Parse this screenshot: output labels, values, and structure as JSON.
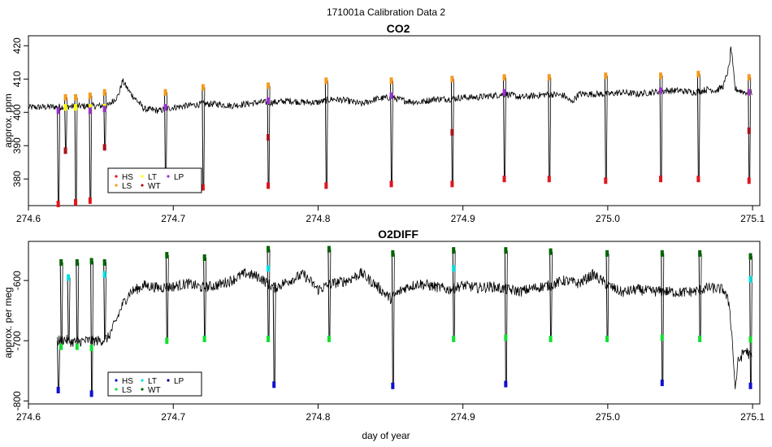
{
  "figure": {
    "title": "171001a   Calibration Data 2",
    "xlabel": "day of year"
  },
  "colors": {
    "HS": "#e0141c",
    "LS": "#f59a1e",
    "LT": "#ffff00",
    "WT": "#a8141c",
    "LP": "#9932cc",
    "trace": "#000000"
  },
  "chart_data": [
    {
      "type": "line",
      "title": "CO2",
      "xlabel": "",
      "ylabel": "approx. ppm",
      "xlim": [
        274.6,
        275.105
      ],
      "ylim": [
        372,
        423
      ],
      "xticks": [
        "274.6",
        "274.7",
        "274.8",
        "274.9",
        "275.0",
        "275.1"
      ],
      "yticks": [
        "380",
        "390",
        "400",
        "410",
        "420"
      ],
      "legend": {
        "placement": "bottom-left",
        "entries": [
          {
            "label": "HS",
            "color": "#e0141c"
          },
          {
            "label": "LS",
            "color": "#f59a1e"
          },
          {
            "label": "LT",
            "color": "#ffff00"
          },
          {
            "label": "WT",
            "color": "#a8141c"
          },
          {
            "label": "LP",
            "color": "#9932cc"
          }
        ]
      },
      "baseline": {
        "x": [
          274.6,
          274.655,
          274.662,
          274.665,
          274.67,
          274.68,
          274.69,
          274.7,
          274.71,
          274.72,
          274.73,
          274.74,
          274.75,
          274.76,
          274.77,
          274.78,
          274.79,
          274.8,
          274.81,
          274.82,
          274.83,
          274.84,
          274.85,
          274.86,
          274.87,
          274.88,
          274.89,
          274.9,
          274.91,
          274.92,
          274.93,
          274.94,
          274.95,
          274.96,
          274.97,
          274.975,
          274.98,
          274.99,
          275.0,
          275.01,
          275.02,
          275.03,
          275.04,
          275.05,
          275.06,
          275.07,
          275.075,
          275.08,
          275.082,
          275.084,
          275.085,
          275.088,
          275.095,
          275.1
        ],
        "y": [
          401.5,
          402.0,
          405.0,
          409.5,
          406.0,
          401.0,
          400.5,
          401.5,
          402.0,
          402.5,
          402.5,
          402.0,
          402.5,
          403.0,
          403.0,
          403.5,
          403.0,
          403.0,
          404.0,
          403.5,
          402.5,
          404.0,
          404.5,
          403.5,
          403.0,
          404.0,
          404.0,
          404.5,
          404.5,
          405.0,
          405.5,
          404.5,
          405.0,
          405.5,
          405.0,
          403.0,
          405.5,
          405.5,
          405.5,
          406.0,
          405.5,
          406.0,
          406.5,
          406.5,
          406.0,
          407.0,
          406.5,
          408.0,
          411.0,
          414.0,
          420.0,
          407.0,
          406.0,
          406.0
        ]
      },
      "calibration_cycles": [
        {
          "x": 274.62,
          "HS": 372.5,
          "LS": null,
          "LT": null,
          "WT": null,
          "LP": 400.5
        },
        {
          "x": 274.625,
          "HS": null,
          "LS": 404.5,
          "LT": 401.5,
          "WT": 388.5,
          "LP": null
        },
        {
          "x": 274.632,
          "HS": 373.0,
          "LS": 404.5,
          "LT": 401.5,
          "WT": null,
          "LP": null
        },
        {
          "x": 274.642,
          "HS": 373.5,
          "LS": 405.0,
          "LT": 401.5,
          "WT": null,
          "LP": 400.5
        },
        {
          "x": 274.652,
          "HS": null,
          "LS": 406.0,
          "LT": 401.5,
          "WT": 389.5,
          "LP": 401.0
        },
        {
          "x": 274.694,
          "HS": 379.5,
          "LS": 406.0,
          "LT": null,
          "WT": null,
          "LP": 401.5
        },
        {
          "x": 274.72,
          "HS": 377.5,
          "LS": 407.5,
          "LT": null,
          "WT": null,
          "LP": null
        },
        {
          "x": 274.765,
          "HS": 378.0,
          "LS": 408.0,
          "LT": null,
          "WT": 392.5,
          "LP": 403.5
        },
        {
          "x": 274.805,
          "HS": 378.0,
          "LS": 409.5,
          "LT": null,
          "WT": null,
          "LP": null
        },
        {
          "x": 274.85,
          "HS": 378.5,
          "LS": 409.5,
          "LT": null,
          "WT": null,
          "LP": 405.0
        },
        {
          "x": 274.892,
          "HS": 378.5,
          "LS": 410.0,
          "LT": null,
          "WT": 394.0,
          "LP": null
        },
        {
          "x": 274.928,
          "HS": 380.0,
          "LS": 410.5,
          "LT": null,
          "WT": null,
          "LP": 406.0
        },
        {
          "x": 274.959,
          "HS": 380.0,
          "LS": 410.5,
          "LT": null,
          "WT": null,
          "LP": null
        },
        {
          "x": 274.998,
          "HS": 379.5,
          "LS": 411.0,
          "LT": null,
          "WT": null,
          "LP": null
        },
        {
          "x": 275.036,
          "HS": 380.0,
          "LS": 411.0,
          "LT": null,
          "WT": null,
          "LP": 406.5
        },
        {
          "x": 275.062,
          "HS": 380.0,
          "LS": 411.5,
          "LT": null,
          "WT": null,
          "LP": null
        },
        {
          "x": 275.097,
          "HS": 379.5,
          "LS": 410.5,
          "LT": 406.0,
          "WT": 394.5,
          "LP": 406.0
        }
      ]
    },
    {
      "type": "line",
      "title": "O2DIFF",
      "xlabel": "day of year",
      "ylabel": "approx. per meg",
      "xlim": [
        274.6,
        275.105
      ],
      "ylim": [
        -805,
        -535
      ],
      "xticks": [
        "274.6",
        "274.7",
        "274.8",
        "274.9",
        "275.0",
        "275.1"
      ],
      "yticks": [
        "-800",
        "-700",
        "-600"
      ],
      "legend": {
        "placement": "bottom-left",
        "entries": [
          {
            "label": "HS",
            "color": "#1010d0"
          },
          {
            "label": "LS",
            "color": "#10e030"
          },
          {
            "label": "LT",
            "color": "#00e0e0"
          },
          {
            "label": "WT",
            "color": "#006400"
          },
          {
            "label": "LP",
            "color": "#00008b"
          }
        ]
      },
      "baseline": {
        "x": [
          274.62,
          274.625,
          274.63,
          274.64,
          274.65,
          274.655,
          274.66,
          274.665,
          274.67,
          274.68,
          274.69,
          274.7,
          274.71,
          274.72,
          274.73,
          274.74,
          274.75,
          274.76,
          274.765,
          274.77,
          274.78,
          274.79,
          274.8,
          274.81,
          274.82,
          274.83,
          274.84,
          274.85,
          274.86,
          274.87,
          274.88,
          274.89,
          274.9,
          274.91,
          274.92,
          274.93,
          274.94,
          274.95,
          274.96,
          274.97,
          274.98,
          274.99,
          275.0,
          275.01,
          275.02,
          275.03,
          275.04,
          275.05,
          275.06,
          275.07,
          275.08,
          275.084,
          275.086,
          275.088,
          275.09,
          275.095,
          275.1
        ],
        "y": [
          -700,
          -698,
          -702,
          -700,
          -700,
          -695,
          -670,
          -640,
          -620,
          -608,
          -612,
          -610,
          -605,
          -612,
          -608,
          -600,
          -588,
          -595,
          -605,
          -612,
          -600,
          -590,
          -615,
          -605,
          -600,
          -588,
          -608,
          -630,
          -612,
          -605,
          -610,
          -615,
          -608,
          -612,
          -610,
          -615,
          -618,
          -612,
          -608,
          -600,
          -605,
          -590,
          -608,
          -620,
          -615,
          -618,
          -618,
          -620,
          -618,
          -612,
          -615,
          -640,
          -700,
          -780,
          -735,
          -715,
          -730
        ]
      },
      "calibration_cycles": [
        {
          "x": 274.62,
          "HS": -782,
          "LS": null,
          "LT": null,
          "WT": null,
          "LP": null
        },
        {
          "x": 274.622,
          "HS": null,
          "LS": -710,
          "LT": null,
          "WT": -570,
          "LP": null
        },
        {
          "x": 274.627,
          "HS": null,
          "LS": null,
          "LT": -595,
          "WT": null,
          "LP": null
        },
        {
          "x": 274.633,
          "HS": null,
          "LS": -710,
          "LT": null,
          "WT": -570,
          "LP": null
        },
        {
          "x": 274.643,
          "HS": -788,
          "LS": -712,
          "LT": null,
          "WT": -568,
          "LP": null
        },
        {
          "x": 274.652,
          "HS": null,
          "LS": null,
          "LT": -590,
          "WT": -570,
          "LP": null
        },
        {
          "x": 274.695,
          "HS": null,
          "LS": -700,
          "LT": null,
          "WT": -558,
          "LP": null
        },
        {
          "x": 274.721,
          "HS": null,
          "LS": -697,
          "LT": null,
          "WT": -562,
          "LP": null
        },
        {
          "x": 274.765,
          "HS": null,
          "LS": -697,
          "LT": -580,
          "WT": -548,
          "LP": null
        },
        {
          "x": 274.769,
          "HS": -773,
          "LS": null,
          "LT": null,
          "WT": null,
          "LP": null
        },
        {
          "x": 274.807,
          "HS": null,
          "LS": -697,
          "LT": null,
          "WT": -548,
          "LP": null
        },
        {
          "x": 274.851,
          "HS": -775,
          "LS": null,
          "LT": null,
          "WT": -555,
          "LP": null
        },
        {
          "x": 274.893,
          "HS": null,
          "LS": -697,
          "LT": -580,
          "WT": -550,
          "LP": null
        },
        {
          "x": 274.929,
          "HS": -772,
          "LS": -695,
          "LT": null,
          "WT": -550,
          "LP": null
        },
        {
          "x": 274.96,
          "HS": null,
          "LS": -697,
          "LT": null,
          "WT": -552,
          "LP": null
        },
        {
          "x": 274.999,
          "HS": null,
          "LS": -697,
          "LT": null,
          "WT": -555,
          "LP": null
        },
        {
          "x": 275.037,
          "HS": -770,
          "LS": -695,
          "LT": null,
          "WT": -555,
          "LP": null
        },
        {
          "x": 275.063,
          "HS": null,
          "LS": -697,
          "LT": null,
          "WT": -555,
          "LP": null
        },
        {
          "x": 275.098,
          "HS": -775,
          "LS": -698,
          "LT": -598,
          "WT": -560,
          "LP": null
        }
      ]
    }
  ]
}
